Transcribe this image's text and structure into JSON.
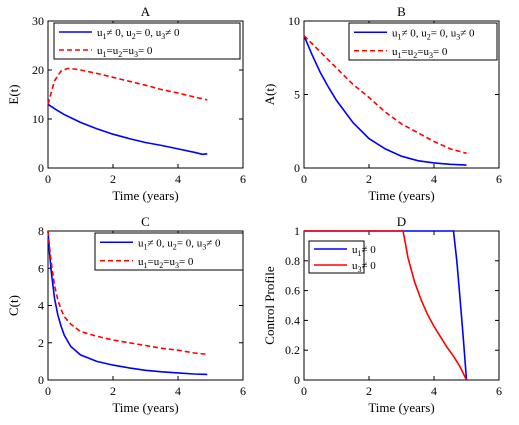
{
  "chart_data": [
    {
      "panel": "A",
      "type": "line",
      "title": "A",
      "xlabel": "Time (years)",
      "ylabel": "E(t)",
      "xlim": [
        0,
        6
      ],
      "ylim": [
        0,
        30
      ],
      "xticks": [
        0,
        2,
        4,
        6
      ],
      "yticks": [
        0,
        10,
        20,
        30
      ],
      "legend_position": "top-right",
      "series": [
        {
          "legend_parts": [
            [
              "u",
              "1",
              "≠ 0, "
            ],
            [
              "u",
              "2",
              "= 0, "
            ],
            [
              "u",
              "3",
              "≠ 0"
            ]
          ],
          "color": "#0000ff",
          "dash": "solid",
          "x": [
            0,
            0.25,
            0.5,
            0.75,
            1,
            1.5,
            2,
            2.5,
            3,
            3.5,
            4,
            4.5,
            4.75,
            4.9
          ],
          "y": [
            13,
            11.9,
            10.9,
            10.1,
            9.3,
            8.0,
            6.9,
            6.0,
            5.2,
            4.6,
            3.9,
            3.2,
            2.8,
            2.9
          ]
        },
        {
          "legend_parts": [
            [
              "u",
              "1",
              "="
            ],
            [
              "u",
              "2",
              "="
            ],
            [
              "u",
              "3",
              "= 0"
            ]
          ],
          "color": "#ff0000",
          "dash": "dashed",
          "x": [
            0,
            0.2,
            0.4,
            0.6,
            0.8,
            1,
            1.5,
            2,
            2.5,
            3,
            3.5,
            4,
            4.5,
            4.9
          ],
          "y": [
            13,
            17.8,
            19.8,
            20.3,
            20.2,
            20.0,
            19.3,
            18.5,
            17.7,
            16.9,
            16.0,
            15.3,
            14.5,
            13.9
          ]
        }
      ]
    },
    {
      "panel": "B",
      "type": "line",
      "title": "B",
      "xlabel": "Time (years)",
      "ylabel": "A(t)",
      "xlim": [
        0,
        6
      ],
      "ylim": [
        0,
        10
      ],
      "xticks": [
        0,
        2,
        4,
        6
      ],
      "yticks": [
        0,
        5,
        10
      ],
      "legend_position": "top-right",
      "series": [
        {
          "legend_parts": [
            [
              "u",
              "1",
              "≠ 0, "
            ],
            [
              "u",
              "2",
              "= 0, "
            ],
            [
              "u",
              "3",
              "≠ 0"
            ]
          ],
          "color": "#0000ff",
          "dash": "solid",
          "x": [
            0,
            0.25,
            0.5,
            0.75,
            1,
            1.5,
            2,
            2.5,
            3,
            3.5,
            4,
            4.5,
            5
          ],
          "y": [
            9,
            7.7,
            6.5,
            5.5,
            4.6,
            3.1,
            2.0,
            1.3,
            0.8,
            0.5,
            0.35,
            0.25,
            0.2
          ]
        },
        {
          "legend_parts": [
            [
              "u",
              "1",
              "="
            ],
            [
              "u",
              "2",
              "="
            ],
            [
              "u",
              "3",
              "= 0"
            ]
          ],
          "color": "#ff0000",
          "dash": "dashed",
          "x": [
            0,
            0.5,
            1,
            1.5,
            2,
            2.5,
            3,
            3.5,
            4,
            4.5,
            5
          ],
          "y": [
            9,
            7.9,
            6.8,
            5.7,
            4.8,
            3.8,
            3.0,
            2.4,
            1.8,
            1.3,
            1.0
          ]
        }
      ]
    },
    {
      "panel": "C",
      "type": "line",
      "title": "C",
      "xlabel": "Time (years)",
      "ylabel": "C(t)",
      "xlim": [
        0,
        6
      ],
      "ylim": [
        0,
        8
      ],
      "xticks": [
        0,
        2,
        4,
        6
      ],
      "yticks": [
        0,
        2,
        4,
        6,
        8
      ],
      "legend_position": "top-right",
      "series": [
        {
          "legend_parts": [
            [
              "u",
              "1",
              "≠ 0, "
            ],
            [
              "u",
              "2",
              "= 0, "
            ],
            [
              "u",
              "3",
              "≠ 0"
            ]
          ],
          "color": "#0000ff",
          "dash": "solid",
          "x": [
            0,
            0.05,
            0.1,
            0.2,
            0.3,
            0.4,
            0.5,
            0.7,
            1,
            1.5,
            2,
            2.5,
            3,
            3.5,
            4,
            4.5,
            4.9
          ],
          "y": [
            8,
            6.8,
            5.8,
            4.4,
            3.5,
            2.9,
            2.4,
            1.8,
            1.35,
            1.0,
            0.8,
            0.65,
            0.52,
            0.44,
            0.38,
            0.32,
            0.3
          ]
        },
        {
          "legend_parts": [
            [
              "u",
              "1",
              "="
            ],
            [
              "u",
              "2",
              "="
            ],
            [
              "u",
              "3",
              "= 0"
            ]
          ],
          "color": "#ff0000",
          "dash": "dashed",
          "x": [
            0,
            0.05,
            0.1,
            0.2,
            0.3,
            0.4,
            0.5,
            0.7,
            1,
            1.5,
            2,
            2.5,
            3,
            3.5,
            4,
            4.5,
            4.9
          ],
          "y": [
            8,
            7.1,
            6.3,
            5.1,
            4.3,
            3.8,
            3.4,
            3.0,
            2.6,
            2.35,
            2.15,
            2.0,
            1.85,
            1.7,
            1.6,
            1.45,
            1.38
          ]
        }
      ]
    },
    {
      "panel": "D",
      "type": "line",
      "title": "D",
      "xlabel": "Time (years)",
      "ylabel": "Control Profile",
      "xlim": [
        0,
        6
      ],
      "ylim": [
        0,
        1
      ],
      "xticks": [
        0,
        2,
        4,
        6
      ],
      "yticks": [
        0,
        0.2,
        0.4,
        0.6,
        0.8,
        1
      ],
      "legend_position": "top-left",
      "series": [
        {
          "legend_parts": [
            [
              "u",
              "1",
              "≠ 0"
            ]
          ],
          "color": "#0000ff",
          "dash": "solid",
          "x": [
            0,
            4.6,
            4.7,
            4.8,
            4.9,
            5.0
          ],
          "y": [
            1,
            1,
            0.8,
            0.55,
            0.28,
            0.0
          ]
        },
        {
          "legend_parts": [
            [
              "u",
              "3",
              "≠ 0"
            ]
          ],
          "color": "#ff0000",
          "dash": "solid",
          "x": [
            0,
            3.05,
            3.2,
            3.4,
            3.6,
            3.8,
            4.0,
            4.2,
            4.4,
            4.6,
            4.8,
            5.0
          ],
          "y": [
            1,
            1,
            0.82,
            0.66,
            0.54,
            0.44,
            0.36,
            0.29,
            0.22,
            0.16,
            0.09,
            0.0
          ]
        }
      ]
    }
  ]
}
